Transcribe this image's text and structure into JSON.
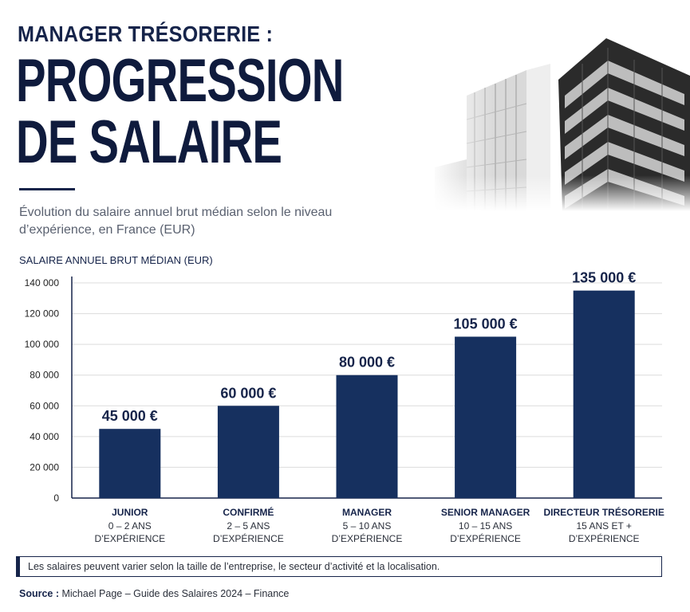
{
  "header": {
    "kicker": "MANAGER TRÉSORERIE :",
    "title_line1": "PROGRESSION",
    "title_line2": "DE SALAIRE",
    "subtitle": "Évolution du salaire annuel brut médian selon le niveau d’expérience, en France (EUR)"
  },
  "colors": {
    "navy": "#16244a",
    "bar": "#16305f"
  },
  "chart_data": {
    "type": "bar",
    "ylabel": "SALAIRE ANNUEL BRUT MÉDIAN (EUR)",
    "ylim": [
      0,
      140000
    ],
    "yticks": [
      0,
      20000,
      40000,
      60000,
      80000,
      100000,
      120000,
      140000
    ],
    "ytick_labels": [
      "0",
      "20 000",
      "40 000",
      "60 000",
      "80 000",
      "100 000",
      "120 000",
      "140 000"
    ],
    "grid": true,
    "categories": [
      "JUNIOR",
      "CONFIRMÉ",
      "MANAGER",
      "SENIOR MANAGER",
      "DIRECTEUR TRÉSORERIE"
    ],
    "category_details": [
      [
        "0 – 2 ANS",
        "D’EXPÉRIENCE"
      ],
      [
        "2 – 5 ANS",
        "D’EXPÉRIENCE"
      ],
      [
        "5 – 10 ANS",
        "D’EXPÉRIENCE"
      ],
      [
        "10 – 15 ANS",
        "D’EXPÉRIENCE"
      ],
      [
        "15 ANS ET +",
        "D’EXPÉRIENCE"
      ]
    ],
    "values": [
      45000,
      60000,
      80000,
      105000,
      135000
    ],
    "data_labels": [
      "45 000 €",
      "60 000 €",
      "80 000 €",
      "105 000 €",
      "135 000 €"
    ]
  },
  "footer": {
    "note": "Les salaires peuvent varier selon la taille de l’entreprise, le secteur d’activité et la localisation.",
    "source_label": "Source :",
    "source_text": " Michael Page – Guide des Salaires 2024 – Finance"
  }
}
